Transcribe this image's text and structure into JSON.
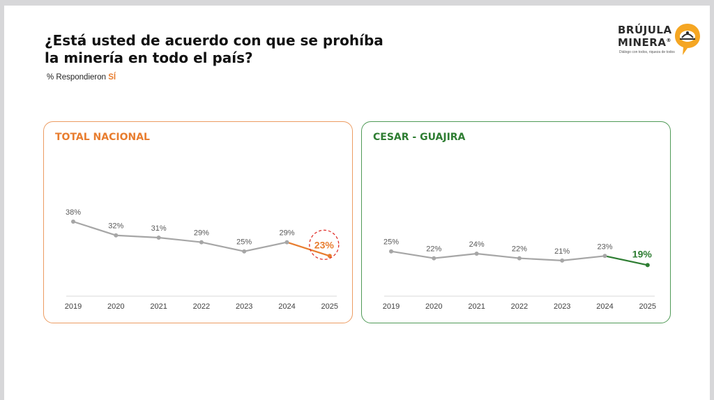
{
  "header": {
    "title_line1": "¿Está usted de acuerdo con que se prohíba",
    "title_line2": "la minería en todo el país?",
    "subtitle_prefix": "% Respondieron ",
    "subtitle_highlight": "SÍ"
  },
  "logo": {
    "line1": "BRÚJULA",
    "line2": "MINERA",
    "registered": "®",
    "tagline": "Diálogo con todos, riqueza de todos",
    "icon": "compass-speech-bubble-icon"
  },
  "colors": {
    "grey_line": "#a6a6a6",
    "orange": "#e87d2f",
    "orange_border": "#ec9c62",
    "green": "#2e7d32",
    "green_border": "#4f9a56",
    "highlight_circle": "#e0312b"
  },
  "chart_data": [
    {
      "type": "line",
      "title": "TOTAL NACIONAL",
      "x": [
        "2019",
        "2020",
        "2021",
        "2022",
        "2023",
        "2024",
        "2025"
      ],
      "values": [
        38,
        32,
        31,
        29,
        25,
        29,
        23
      ],
      "labels": [
        "38%",
        "32%",
        "31%",
        "29%",
        "25%",
        "29%",
        "23%"
      ],
      "ylim": [
        10,
        45
      ],
      "highlight_last": true,
      "accent": "#e87d2f",
      "circled_last": true
    },
    {
      "type": "line",
      "title": "CESAR - GUAJIRA",
      "x": [
        "2019",
        "2020",
        "2021",
        "2022",
        "2023",
        "2024",
        "2025"
      ],
      "values": [
        25,
        22,
        24,
        22,
        21,
        23,
        19
      ],
      "labels": [
        "25%",
        "22%",
        "24%",
        "22%",
        "21%",
        "23%",
        "19%"
      ],
      "ylim": [
        10,
        45
      ],
      "highlight_last": true,
      "accent": "#2e7d32",
      "circled_last": false
    }
  ]
}
